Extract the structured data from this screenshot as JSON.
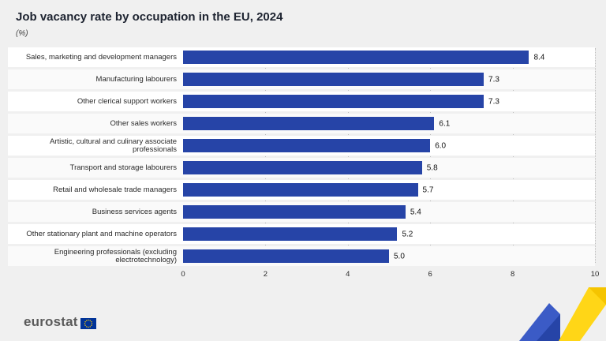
{
  "header": {
    "title": "Job vacancy rate by occupation in the EU, 2024",
    "subtitle": "(%)"
  },
  "chart_data": {
    "type": "bar",
    "orientation": "horizontal",
    "title": "Job vacancy rate by occupation in the EU, 2024",
    "xlabel": "(%)",
    "ylabel": "",
    "xlim": [
      0,
      10
    ],
    "x_ticks": [
      "0",
      "2",
      "4",
      "6",
      "8",
      "10"
    ],
    "grid": true,
    "legend": "none",
    "bar_color": "#2644A7",
    "categories": [
      "Sales, marketing and development managers",
      "Manufacturing labourers",
      "Other clerical support workers",
      "Other sales workers",
      "Artistic, cultural and culinary associate professionals",
      "Transport and storage labourers",
      "Retail and wholesale trade managers",
      "Business services agents",
      "Other stationary plant and machine operators",
      "Engineering professionals (excluding electrotechnology)"
    ],
    "values": [
      8.4,
      7.3,
      7.3,
      6.1,
      6.0,
      5.8,
      5.7,
      5.4,
      5.2,
      5.0
    ],
    "value_labels": [
      "8.4",
      "7.3",
      "7.3",
      "6.1",
      "6.0",
      "5.8",
      "5.7",
      "5.4",
      "5.2",
      "5.0"
    ]
  },
  "footer": {
    "logo_text": "eurostat"
  },
  "colors": {
    "bar": "#2644A7",
    "accent_yellow": "#FFD617",
    "accent_blue_light": "#3B5BC6",
    "eu_flag_blue": "#003399",
    "star_yellow": "#FFCC00",
    "background": "#f0f0f0"
  }
}
